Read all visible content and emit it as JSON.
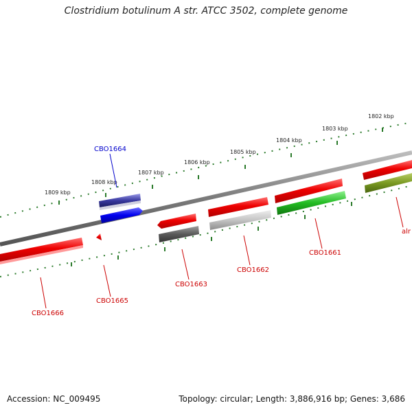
{
  "title": "Clostridium botulinum A str. ATCC 3502, complete genome",
  "footer": {
    "accession": "Accession: NC_009495",
    "summary": "Topology: circular; Length: 3,886,916 bp; Genes: 3,686"
  },
  "colors": {
    "backbone": "#7a7a7a",
    "tick": "#2a7a2a",
    "label_red": "#cc0000",
    "label_blue": "#0000cc"
  },
  "ruler": {
    "labels": [
      "1809 kbp",
      "1808 kbp",
      "1807 kbp",
      "1806 kbp",
      "1805 kbp",
      "1804 kbp",
      "1803 kbp",
      "1802 kbp"
    ]
  },
  "genes": [
    {
      "name": "CBO1666",
      "color": "red",
      "strand": "reverse"
    },
    {
      "name": "CBO1665",
      "color": "red",
      "strand": "reverse"
    },
    {
      "name": "CBO1664",
      "color": "blue",
      "strand": "forward"
    },
    {
      "name": "CBO1663",
      "color": "red",
      "strand": "reverse"
    },
    {
      "name": "CBO1662",
      "color": "red",
      "strand": "forward"
    },
    {
      "name": "CBO1661",
      "color": "red",
      "strand": "forward"
    },
    {
      "name": "alr",
      "color": "red",
      "strand": "forward"
    }
  ]
}
